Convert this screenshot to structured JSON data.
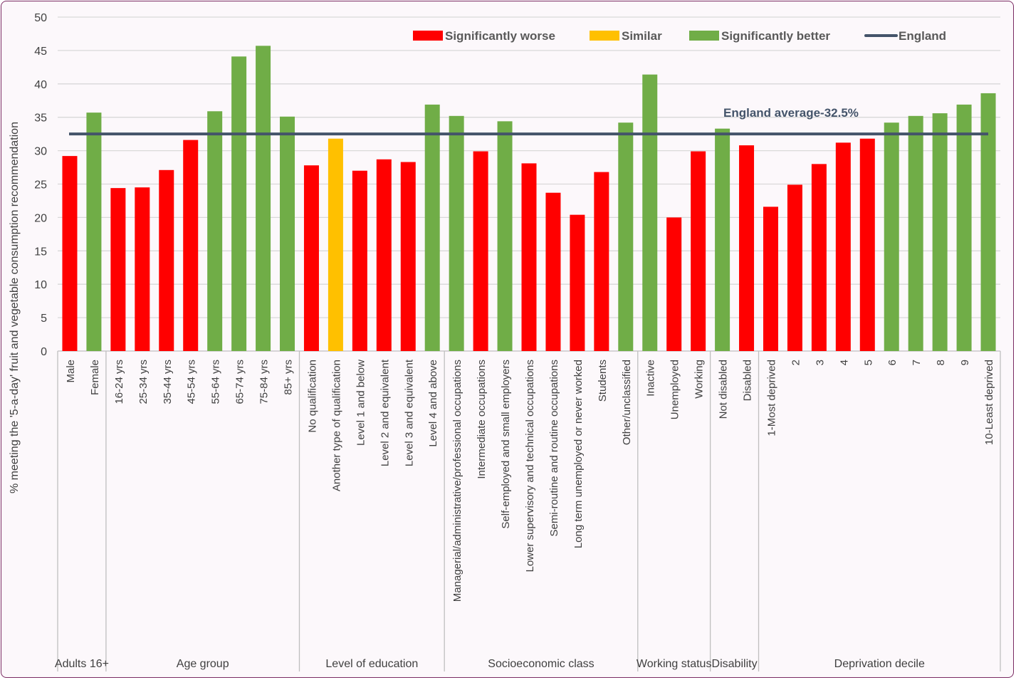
{
  "chart_data": {
    "type": "bar",
    "ylabel": "% meeting the '5-a-day' fruit and vegetable consumption recommendation",
    "xlabel": "",
    "ylim": [
      0,
      50
    ],
    "yticks": [
      0,
      5,
      10,
      15,
      20,
      25,
      30,
      35,
      40,
      45,
      50
    ],
    "grid": true,
    "legend_position": "top-right",
    "legend": [
      {
        "label": "Significantly worse",
        "color": "#ff0000",
        "kind": "bar"
      },
      {
        "label": "Similar",
        "color": "#ffc000",
        "kind": "bar"
      },
      {
        "label": "Significantly better",
        "color": "#70ad47",
        "kind": "bar"
      },
      {
        "label": "England",
        "color": "#44546a",
        "kind": "line"
      }
    ],
    "reference_line": {
      "name": "England",
      "value": 32.5,
      "annotation": "England average-32.5%",
      "color": "#44546a"
    },
    "groups": [
      {
        "label": "Adults 16+",
        "count": 2
      },
      {
        "label": "Age group",
        "count": 8
      },
      {
        "label": "Level of education",
        "count": 6
      },
      {
        "label": "Socioeconomic class",
        "count": 8
      },
      {
        "label": "Working status",
        "count": 3
      },
      {
        "label": "Disability",
        "count": 2
      },
      {
        "label": "Deprivation decile",
        "count": 10
      }
    ],
    "categories": [
      "Male",
      "Female",
      "16-24 yrs",
      "25-34 yrs",
      "35-44 yrs",
      "45-54 yrs",
      "55-64 yrs",
      "65-74 yrs",
      "75-84 yrs",
      "85+ yrs",
      "No qualification",
      "Another type of qualification",
      "Level 1 and below",
      "Level 2 and equivalent",
      "Level 3 and equivalent",
      "Level 4 and above",
      "Managerial/administrative/professional occupations",
      "Intermediate occupations",
      "Self-employed and small employers",
      "Lower supervisory and technical occupations",
      "Semi-routine and routine occupations",
      "Long term unemployed or never worked",
      "Students",
      "Other/unclassified",
      "Inactive",
      "Unemployed",
      "Working",
      "Not disabled",
      "Disabled",
      "1-Most deprived",
      "2",
      "3",
      "4",
      "5",
      "6",
      "7",
      "8",
      "9",
      "10-Least deprived"
    ],
    "values": [
      29.2,
      35.7,
      24.4,
      24.5,
      27.1,
      31.6,
      35.9,
      44.1,
      45.7,
      35.1,
      27.8,
      31.8,
      27.0,
      28.7,
      28.3,
      36.9,
      35.2,
      29.9,
      34.4,
      28.1,
      23.7,
      20.4,
      26.8,
      34.2,
      41.4,
      20.0,
      29.9,
      33.3,
      30.8,
      21.6,
      24.9,
      28.0,
      31.2,
      31.8,
      34.2,
      35.2,
      35.6,
      36.9,
      38.6
    ],
    "significance": [
      "worse",
      "better",
      "worse",
      "worse",
      "worse",
      "worse",
      "better",
      "better",
      "better",
      "better",
      "worse",
      "similar",
      "worse",
      "worse",
      "worse",
      "better",
      "better",
      "worse",
      "better",
      "worse",
      "worse",
      "worse",
      "worse",
      "better",
      "better",
      "worse",
      "worse",
      "better",
      "worse",
      "worse",
      "worse",
      "worse",
      "worse",
      "worse",
      "better",
      "better",
      "better",
      "better",
      "better"
    ]
  }
}
